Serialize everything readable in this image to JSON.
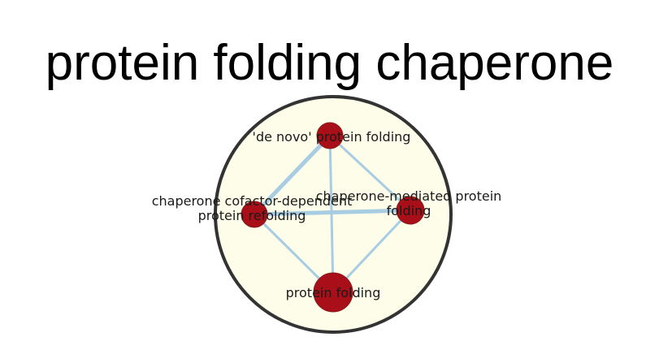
{
  "title": "protein folding chaperone",
  "colors": {
    "cluster_fill": "#fdfdea",
    "cluster_stroke": "#333333",
    "edge": "#a8cde3",
    "node_fill": "#a80f18",
    "node_stroke": "#8a1a1a"
  },
  "nodes": [
    {
      "id": "de-novo",
      "label_lines": [
        "'de novo' protein folding"
      ]
    },
    {
      "id": "cofactor",
      "label_lines": [
        "chaperone cofactor-dependent",
        "protein refolding"
      ]
    },
    {
      "id": "mediated",
      "label_lines": [
        "chaperone-mediated protein",
        "folding"
      ]
    },
    {
      "id": "folding",
      "label_lines": [
        "protein folding"
      ]
    }
  ],
  "edges": [
    {
      "from": "de-novo",
      "to": "cofactor"
    },
    {
      "from": "de-novo",
      "to": "mediated"
    },
    {
      "from": "de-novo",
      "to": "folding"
    },
    {
      "from": "cofactor",
      "to": "mediated"
    },
    {
      "from": "cofactor",
      "to": "folding"
    },
    {
      "from": "mediated",
      "to": "folding"
    }
  ]
}
